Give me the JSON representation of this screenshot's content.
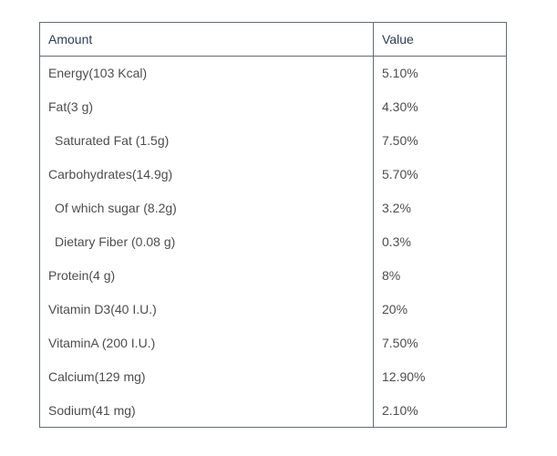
{
  "table": {
    "headers": {
      "amount": "Amount",
      "value": "Value"
    },
    "rows": [
      {
        "amount": "Energy(103 Kcal)",
        "value": "5.10%",
        "indent": false
      },
      {
        "amount": "Fat(3 g)",
        "value": "4.30%",
        "indent": false
      },
      {
        "amount": "Saturated Fat (1.5g)",
        "value": "7.50%",
        "indent": true
      },
      {
        "amount": "Carbohydrates(14.9g)",
        "value": "5.70%",
        "indent": false
      },
      {
        "amount": "Of which sugar (8.2g)",
        "value": "3.2%",
        "indent": true
      },
      {
        "amount": "Dietary Fiber (0.08 g)",
        "value": "0.3%",
        "indent": true
      },
      {
        "amount": "Protein(4 g)",
        "value": "8%",
        "indent": false
      },
      {
        "amount": "Vitamin D3(40 I.U.)",
        "value": "20%",
        "indent": false
      },
      {
        "amount": "VitaminA (200 I.U.)",
        "value": "7.50%",
        "indent": false
      },
      {
        "amount": "Calcium(129 mg)",
        "value": "12.90%",
        "indent": false
      },
      {
        "amount": "Sodium(41 mg)",
        "value": "2.10%",
        "indent": false
      }
    ]
  }
}
